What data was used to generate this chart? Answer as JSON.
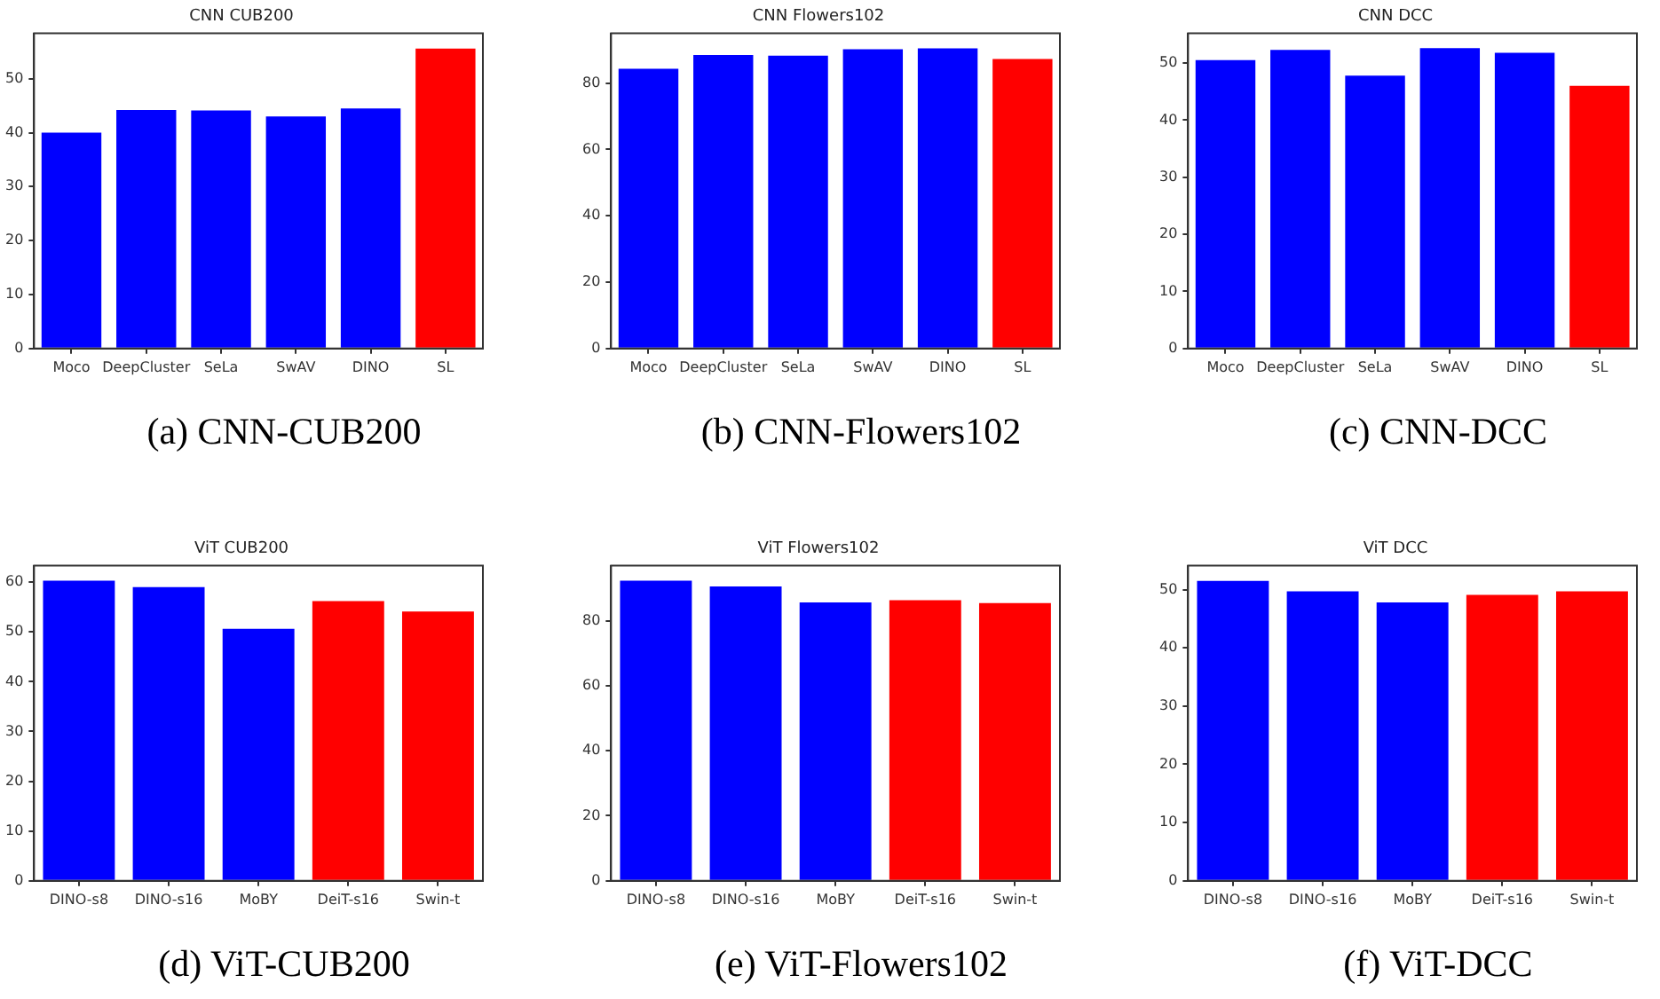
{
  "chart_data": [
    {
      "type": "bar",
      "title": "CNN CUB200",
      "categories": [
        "Moco",
        "DeepCluster",
        "SeLa",
        "SwAV",
        "DINO",
        "SL"
      ],
      "values": [
        40,
        44.2,
        44.1,
        43,
        44.5,
        55.6
      ],
      "colors": [
        "#0000ff",
        "#0000ff",
        "#0000ff",
        "#0000ff",
        "#0000ff",
        "#ff0000"
      ],
      "ylim": [
        0,
        58.4
      ],
      "yticks": [
        0,
        10,
        20,
        30,
        40,
        50
      ],
      "grid": false,
      "legend": false,
      "annotations": [
        "(a) CNN-CUB200"
      ]
    },
    {
      "type": "bar",
      "title": "CNN Flowers102",
      "categories": [
        "Moco",
        "DeepCluster",
        "SeLa",
        "SwAV",
        "DINO",
        "SL"
      ],
      "values": [
        84.3,
        88.5,
        88.3,
        90.2,
        90.5,
        87.3
      ],
      "colors": [
        "#0000ff",
        "#0000ff",
        "#0000ff",
        "#0000ff",
        "#0000ff",
        "#ff0000"
      ],
      "ylim": [
        0,
        95
      ],
      "yticks": [
        0,
        20,
        40,
        60,
        80
      ],
      "grid": false,
      "legend": false,
      "annotations": [
        "(b) CNN-Flowers102"
      ]
    },
    {
      "type": "bar",
      "title": "CNN DCC",
      "categories": [
        "Moco",
        "DeepCluster",
        "SeLa",
        "SwAV",
        "DINO",
        "SL"
      ],
      "values": [
        50.5,
        52.3,
        47.8,
        52.6,
        51.8,
        46
      ],
      "colors": [
        "#0000ff",
        "#0000ff",
        "#0000ff",
        "#0000ff",
        "#0000ff",
        "#ff0000"
      ],
      "ylim": [
        0,
        55.2
      ],
      "yticks": [
        0,
        10,
        20,
        30,
        40,
        50
      ],
      "grid": false,
      "legend": false,
      "annotations": [
        "(c) CNN-DCC"
      ]
    },
    {
      "type": "bar",
      "title": "ViT CUB200",
      "categories": [
        "DINO-s8",
        "DINO-s16",
        "MoBY",
        "DeiT-s16",
        "Swin-t"
      ],
      "values": [
        60.3,
        59,
        50.6,
        56.2,
        54.1
      ],
      "colors": [
        "#0000ff",
        "#0000ff",
        "#0000ff",
        "#ff0000",
        "#ff0000"
      ],
      "ylim": [
        0,
        63.3
      ],
      "yticks": [
        0,
        10,
        20,
        30,
        40,
        50,
        60
      ],
      "grid": false,
      "legend": false,
      "annotations": [
        "(d) ViT-CUB200"
      ]
    },
    {
      "type": "bar",
      "title": "ViT Flowers102",
      "categories": [
        "DINO-s8",
        "DINO-s16",
        "MoBY",
        "DeiT-s16",
        "Swin-t"
      ],
      "values": [
        92.3,
        90.5,
        85.6,
        86.3,
        85.4
      ],
      "colors": [
        "#0000ff",
        "#0000ff",
        "#0000ff",
        "#ff0000",
        "#ff0000"
      ],
      "ylim": [
        0,
        96.9
      ],
      "yticks": [
        0,
        20,
        40,
        60,
        80
      ],
      "grid": false,
      "legend": false,
      "annotations": [
        "(e) ViT-Flowers102"
      ]
    },
    {
      "type": "bar",
      "title": "ViT DCC",
      "categories": [
        "DINO-s8",
        "DINO-s16",
        "MoBY",
        "DeiT-s16",
        "Swin-t"
      ],
      "values": [
        51.5,
        49.7,
        47.8,
        49.1,
        49.7
      ],
      "colors": [
        "#0000ff",
        "#0000ff",
        "#0000ff",
        "#ff0000",
        "#ff0000"
      ],
      "ylim": [
        0,
        54.1
      ],
      "yticks": [
        0,
        10,
        20,
        30,
        40,
        50
      ],
      "grid": false,
      "legend": false,
      "annotations": [
        "(f) ViT-DCC"
      ]
    }
  ]
}
